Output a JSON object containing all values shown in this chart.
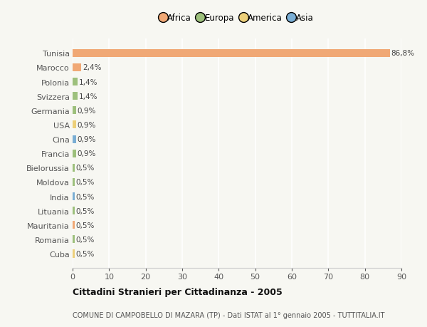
{
  "countries": [
    "Tunisia",
    "Marocco",
    "Polonia",
    "Svizzera",
    "Germania",
    "USA",
    "Cina",
    "Francia",
    "Bielorussia",
    "Moldova",
    "India",
    "Lituania",
    "Mauritania",
    "Romania",
    "Cuba"
  ],
  "values": [
    86.8,
    2.4,
    1.4,
    1.4,
    0.9,
    0.9,
    0.9,
    0.9,
    0.5,
    0.5,
    0.5,
    0.5,
    0.5,
    0.5,
    0.5
  ],
  "labels": [
    "86,8%",
    "2,4%",
    "1,4%",
    "1,4%",
    "0,9%",
    "0,9%",
    "0,9%",
    "0,9%",
    "0,5%",
    "0,5%",
    "0,5%",
    "0,5%",
    "0,5%",
    "0,5%",
    "0,5%"
  ],
  "colors": [
    "#F0A875",
    "#F0A875",
    "#9DC07C",
    "#9DC07C",
    "#9DC07C",
    "#EDD07A",
    "#7AAED4",
    "#9DC07C",
    "#9DC07C",
    "#9DC07C",
    "#7AAED4",
    "#9DC07C",
    "#F0A875",
    "#9DC07C",
    "#EDD07A"
  ],
  "continent_colors": {
    "Africa": "#F0A875",
    "Europa": "#9DC07C",
    "America": "#EDD07A",
    "Asia": "#7AAED4"
  },
  "title": "Cittadini Stranieri per Cittadinanza - 2005",
  "subtitle": "COMUNE DI CAMPOBELLO DI MAZARA (TP) - Dati ISTAT al 1° gennaio 2005 - TUTTITALIA.IT",
  "xlim": [
    0,
    90
  ],
  "xticks": [
    0,
    10,
    20,
    30,
    40,
    50,
    60,
    70,
    80,
    90
  ],
  "background_color": "#f7f7f2",
  "grid_color": "#ffffff",
  "bar_height": 0.55,
  "label_fontsize": 7.5,
  "tick_fontsize": 8,
  "title_fontsize": 9,
  "subtitle_fontsize": 7
}
